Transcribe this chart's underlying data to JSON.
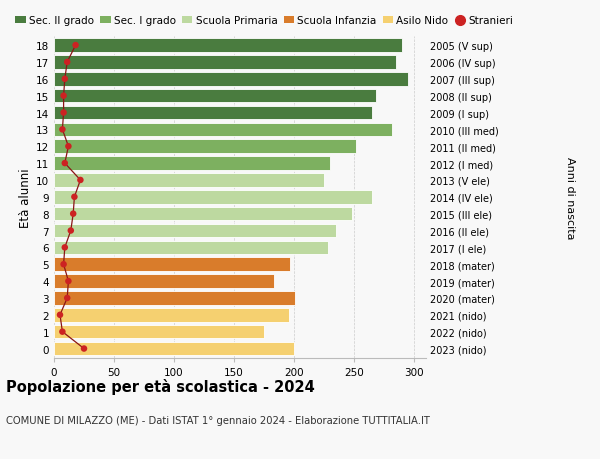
{
  "ages": [
    18,
    17,
    16,
    15,
    14,
    13,
    12,
    11,
    10,
    9,
    8,
    7,
    6,
    5,
    4,
    3,
    2,
    1,
    0
  ],
  "right_labels": [
    "2005 (V sup)",
    "2006 (IV sup)",
    "2007 (III sup)",
    "2008 (II sup)",
    "2009 (I sup)",
    "2010 (III med)",
    "2011 (II med)",
    "2012 (I med)",
    "2013 (V ele)",
    "2014 (IV ele)",
    "2015 (III ele)",
    "2016 (II ele)",
    "2017 (I ele)",
    "2018 (mater)",
    "2019 (mater)",
    "2020 (mater)",
    "2021 (nido)",
    "2022 (nido)",
    "2023 (nido)"
  ],
  "bar_values": [
    290,
    285,
    295,
    268,
    265,
    282,
    252,
    230,
    225,
    265,
    248,
    235,
    228,
    197,
    183,
    201,
    196,
    175,
    200
  ],
  "bar_colors": [
    "#4a7c3f",
    "#4a7c3f",
    "#4a7c3f",
    "#4a7c3f",
    "#4a7c3f",
    "#7db060",
    "#7db060",
    "#7db060",
    "#bdd9a0",
    "#bdd9a0",
    "#bdd9a0",
    "#bdd9a0",
    "#bdd9a0",
    "#d97c2b",
    "#d97c2b",
    "#d97c2b",
    "#f5d070",
    "#f5d070",
    "#f5d070"
  ],
  "stranieri_values": [
    18,
    11,
    9,
    8,
    8,
    7,
    12,
    9,
    22,
    17,
    16,
    14,
    9,
    8,
    12,
    11,
    5,
    7,
    25
  ],
  "legend_labels": [
    "Sec. II grado",
    "Sec. I grado",
    "Scuola Primaria",
    "Scuola Infanzia",
    "Asilo Nido",
    "Stranieri"
  ],
  "legend_colors": [
    "#4a7c3f",
    "#7db060",
    "#bdd9a0",
    "#d97c2b",
    "#f5d070",
    "#cc2222"
  ],
  "xlabel_vals": [
    0,
    50,
    100,
    150,
    200,
    250,
    300
  ],
  "xlim": [
    0,
    310
  ],
  "title": "Popolazione per età scolastica - 2024",
  "subtitle": "COMUNE DI MILAZZO (ME) - Dati ISTAT 1° gennaio 2024 - Elaborazione TUTTITALIA.IT",
  "ylabel": "Età alunni",
  "right_ylabel": "Anni di nascita",
  "background_color": "#f8f8f8"
}
